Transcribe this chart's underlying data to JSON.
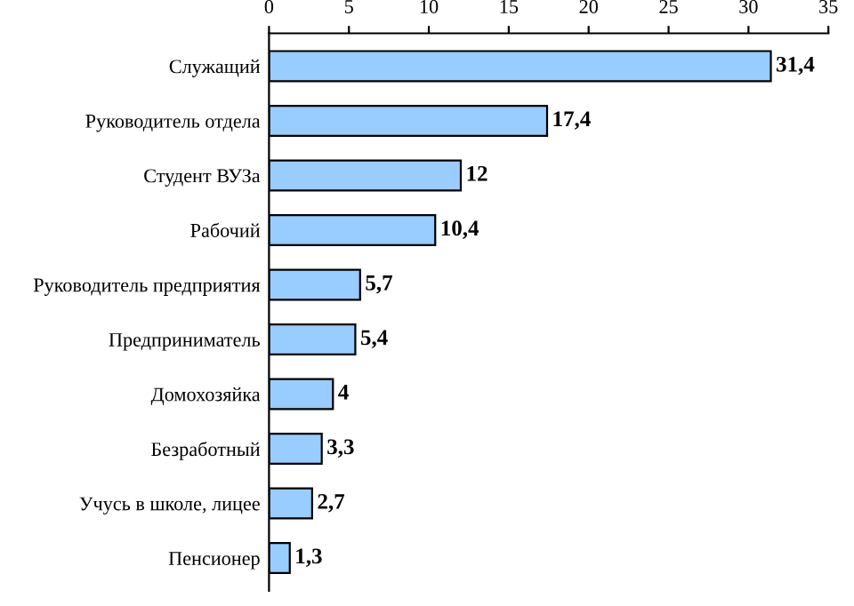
{
  "chart_data": {
    "type": "bar",
    "orientation": "horizontal",
    "categories": [
      "Служащий",
      "Руководитель отдела",
      "Студент ВУЗа",
      "Рабочий",
      "Руководитель предприятия",
      "Предприниматель",
      "Домохозяйка",
      "Безработный",
      "Учусь в школе, лицее",
      "Пенсионер"
    ],
    "values": [
      31.4,
      17.4,
      12,
      10.4,
      5.7,
      5.4,
      4,
      3.3,
      2.7,
      1.3
    ],
    "value_labels": [
      "31,4",
      "17,4",
      "12",
      "10,4",
      "5,7",
      "5,4",
      "4",
      "3,3",
      "2,7",
      "1,3"
    ],
    "color": "#99ccff",
    "xlim": [
      0,
      35
    ],
    "xticks": [
      0,
      5,
      10,
      15,
      20,
      25,
      30,
      35
    ],
    "grid": false,
    "legend": false
  }
}
